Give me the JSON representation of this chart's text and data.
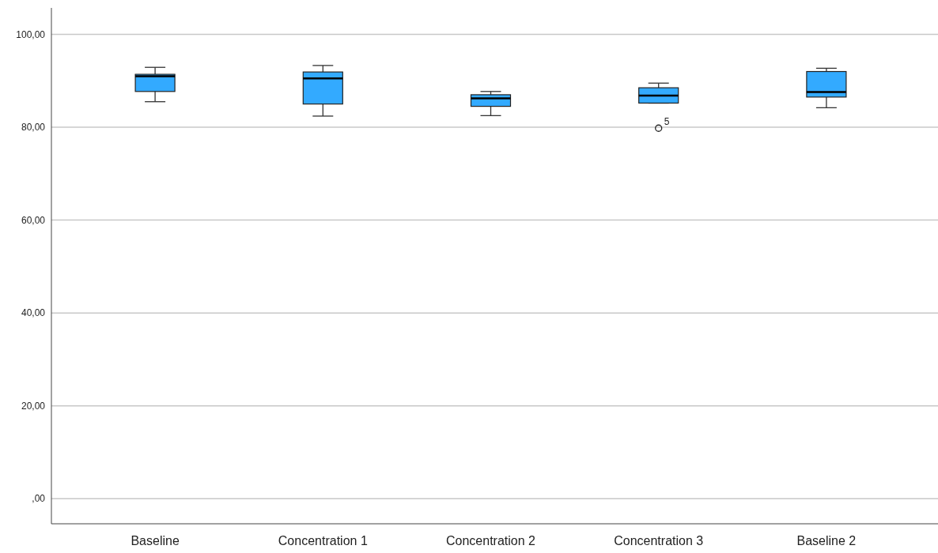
{
  "chart_data": {
    "type": "box",
    "categories": [
      "Baseline",
      "Concentration 1",
      "Concentration 2",
      "Concentration 3",
      "Baseline 2"
    ],
    "boxes": [
      {
        "low": 85.5,
        "q1": 87.7,
        "median": 91.0,
        "q3": 91.4,
        "high": 92.9
      },
      {
        "low": 82.4,
        "q1": 85.0,
        "median": 90.5,
        "q3": 91.9,
        "high": 93.3
      },
      {
        "low": 82.5,
        "q1": 84.5,
        "median": 86.2,
        "q3": 87.0,
        "high": 87.7
      },
      {
        "low": 85.2,
        "q1": 85.2,
        "median": 86.8,
        "q3": 88.5,
        "high": 89.5,
        "outliers": [
          79.8
        ]
      },
      {
        "low": 84.2,
        "q1": 86.5,
        "median": 87.6,
        "q3": 92.0,
        "high": 92.7
      }
    ],
    "color": "#33aaff",
    "ylim": [
      -5.4,
      105.7
    ],
    "yticks": [
      {
        "value": 0,
        "label": ",00"
      },
      {
        "value": 20,
        "label": "20,00"
      },
      {
        "value": 40,
        "label": "40,00"
      },
      {
        "value": 60,
        "label": "60,00"
      },
      {
        "value": 80,
        "label": "80,00"
      },
      {
        "value": 100,
        "label": "100,00"
      }
    ],
    "grid": "y",
    "annotations": [
      "5"
    ]
  }
}
